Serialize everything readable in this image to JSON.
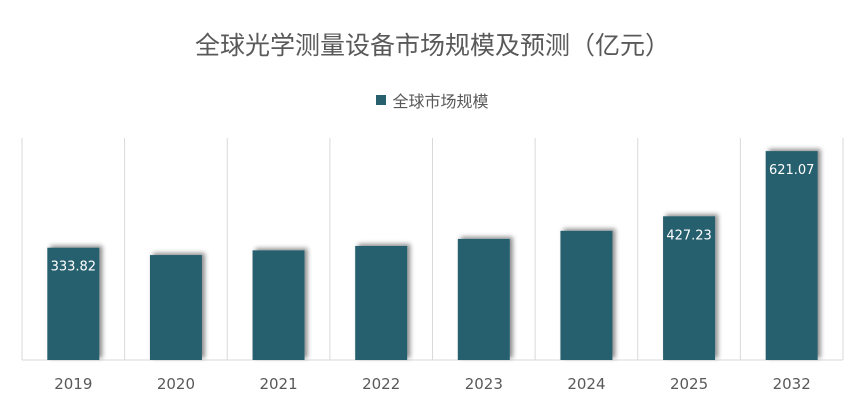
{
  "chart_data": {
    "type": "bar",
    "title": "全球光学测量设备市场规模及预测（亿元）",
    "categories": [
      "2019",
      "2020",
      "2021",
      "2022",
      "2023",
      "2024",
      "2025",
      "2032"
    ],
    "series": [
      {
        "name": "全球市场规模",
        "values": [
          333.82,
          312.0,
          326.0,
          339.0,
          360.0,
          384.0,
          427.23,
          621.07
        ],
        "data_labels": [
          "333.82",
          "",
          "",
          "",
          "",
          "",
          "427.23",
          "621.07"
        ]
      }
    ],
    "ylim": [
      0,
      660
    ],
    "grid": "vertical",
    "legend_position": "top",
    "bar_color": "#28606e",
    "label_color": "#ffffff"
  }
}
